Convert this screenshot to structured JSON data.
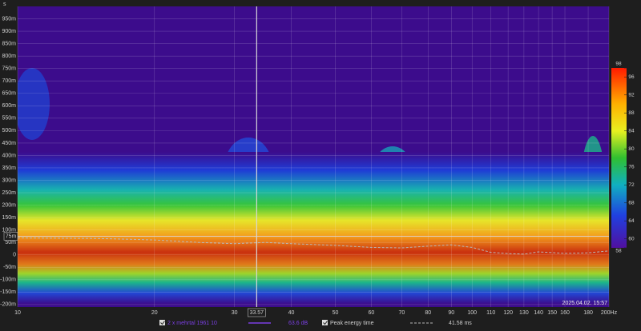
{
  "chart_data": {
    "type": "heatmap",
    "y_unit": "s",
    "xscale": "log",
    "xlim": [
      10,
      200
    ],
    "xticks": [
      10,
      20,
      30,
      40,
      50,
      60,
      70,
      80,
      90,
      100,
      110,
      120,
      130,
      140,
      150,
      160,
      180,
      {
        "value": 200,
        "label": "200Hz"
      }
    ],
    "ylim": [
      -0.21,
      1.0
    ],
    "yticks": [
      {
        "value": 0.95,
        "label": "950m"
      },
      {
        "value": 0.9,
        "label": "900m"
      },
      {
        "value": 0.85,
        "label": "850m"
      },
      {
        "value": 0.8,
        "label": "800m"
      },
      {
        "value": 0.75,
        "label": "750m"
      },
      {
        "value": 0.7,
        "label": "700m"
      },
      {
        "value": 0.65,
        "label": "650m"
      },
      {
        "value": 0.6,
        "label": "600m"
      },
      {
        "value": 0.55,
        "label": "550m"
      },
      {
        "value": 0.5,
        "label": "500m"
      },
      {
        "value": 0.45,
        "label": "450m"
      },
      {
        "value": 0.4,
        "label": "400m"
      },
      {
        "value": 0.35,
        "label": "350m"
      },
      {
        "value": 0.3,
        "label": "300m"
      },
      {
        "value": 0.25,
        "label": "250m"
      },
      {
        "value": 0.2,
        "label": "200m"
      },
      {
        "value": 0.15,
        "label": "150m"
      },
      {
        "value": 0.1,
        "label": "100m"
      },
      {
        "value": 0.05,
        "label": "50m"
      },
      0,
      {
        "value": -0.05,
        "label": "-50m"
      },
      {
        "value": -0.1,
        "label": "-100m"
      },
      {
        "value": -0.15,
        "label": "-150m"
      },
      {
        "value": -0.2,
        "label": "-200m"
      }
    ],
    "grid": true,
    "colorbar": {
      "lim": [
        58,
        98
      ],
      "ticks": [
        98,
        96,
        92,
        88,
        84,
        80,
        76,
        72,
        68,
        64,
        60,
        58
      ]
    },
    "cursor": {
      "x": {
        "value": 33.57,
        "label": "33.57"
      },
      "y": {
        "value": 0.075,
        "label": "75m"
      }
    },
    "spectrogram": {
      "name": "2 x mehrtal 1961 10",
      "color": "#7b3fe4",
      "readout": "63.6 dB"
    },
    "series": [
      {
        "name": "Peak energy time",
        "color": "#b8b8b8",
        "readout": "41.58 ms",
        "x": [
          10,
          15,
          20,
          25,
          30,
          35,
          40,
          50,
          60,
          70,
          80,
          90,
          100,
          110,
          120,
          130,
          140,
          160,
          180,
          200
        ],
        "values": [
          0.068,
          0.066,
          0.06,
          0.05,
          0.045,
          0.05,
          0.045,
          0.038,
          0.03,
          0.028,
          0.035,
          0.04,
          0.03,
          0.01,
          0.005,
          0.003,
          0.012,
          0.006,
          0.008,
          0.016
        ]
      }
    ],
    "timestamp": "2025.04.02. 15:57"
  }
}
